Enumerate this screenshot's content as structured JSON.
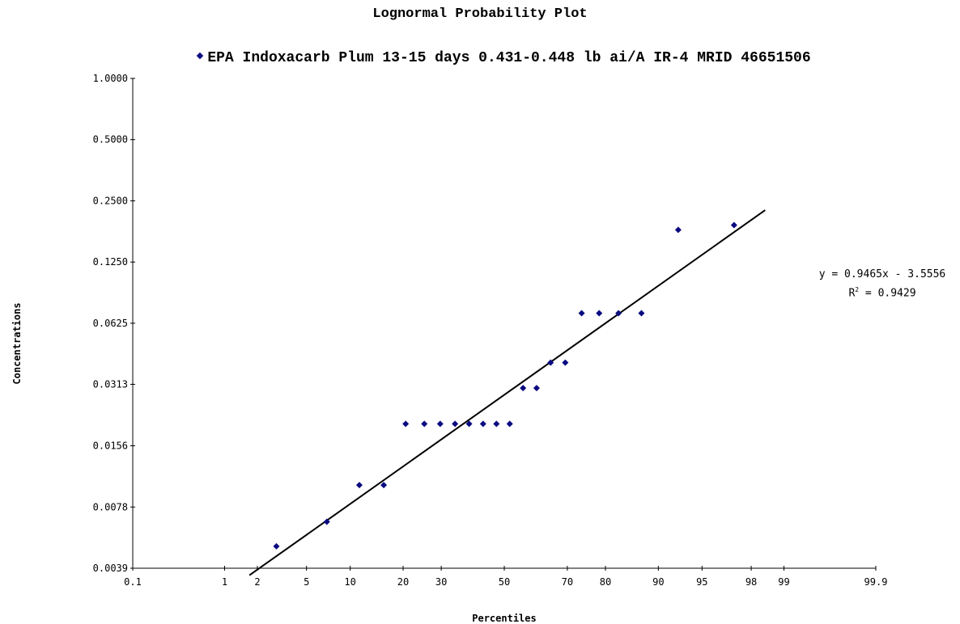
{
  "chart_data": {
    "type": "scatter",
    "title": "Lognormal Probability Plot",
    "xlabel": "Percentiles",
    "ylabel": "Concentrations",
    "x_scale": "probability",
    "y_scale": "log",
    "xticks": [
      "0.1",
      "1",
      "2",
      "5",
      "10",
      "20",
      "30",
      "50",
      "70",
      "80",
      "90",
      "95",
      "98",
      "99",
      "99.9"
    ],
    "yticks": [
      "0.0039",
      "0.0078",
      "0.0156",
      "0.0313",
      "0.0625",
      "0.1250",
      "0.2500",
      "0.5000",
      "1.0000"
    ],
    "xlim": [
      0.1,
      99.9
    ],
    "ylim": [
      0.0039,
      1.0
    ],
    "grid": false,
    "legend_position": "top",
    "series": [
      {
        "name": "EPA Indoxacarb Plum 13-15 days 0.431-0.448 lb ai/A IR-4 MRID 46651506",
        "color": "#0a0a80",
        "marker": "diamond",
        "x": [
          2.9,
          7.0,
          11.4,
          15.8,
          20.6,
          25.3,
          29.7,
          34.1,
          38.5,
          43.0,
          47.4,
          51.8,
          56.2,
          60.6,
          65.0,
          69.4,
          74.0,
          78.5,
          82.9,
          87.3,
          92.6,
          97.2
        ],
        "y": [
          0.005,
          0.0066,
          0.01,
          0.01,
          0.02,
          0.02,
          0.02,
          0.02,
          0.02,
          0.02,
          0.02,
          0.02,
          0.03,
          0.03,
          0.04,
          0.04,
          0.07,
          0.07,
          0.07,
          0.07,
          0.18,
          0.19
        ]
      }
    ],
    "trendline": {
      "type": "linear",
      "color": "#000000",
      "x": [
        1.7,
        98.5
      ],
      "y": [
        0.0036,
        0.225
      ],
      "equation": "y = 0.9465x - 3.5556",
      "r_squared_label": "R",
      "r_squared_exp": "2",
      "r_squared_value": " = 0.9429"
    }
  }
}
